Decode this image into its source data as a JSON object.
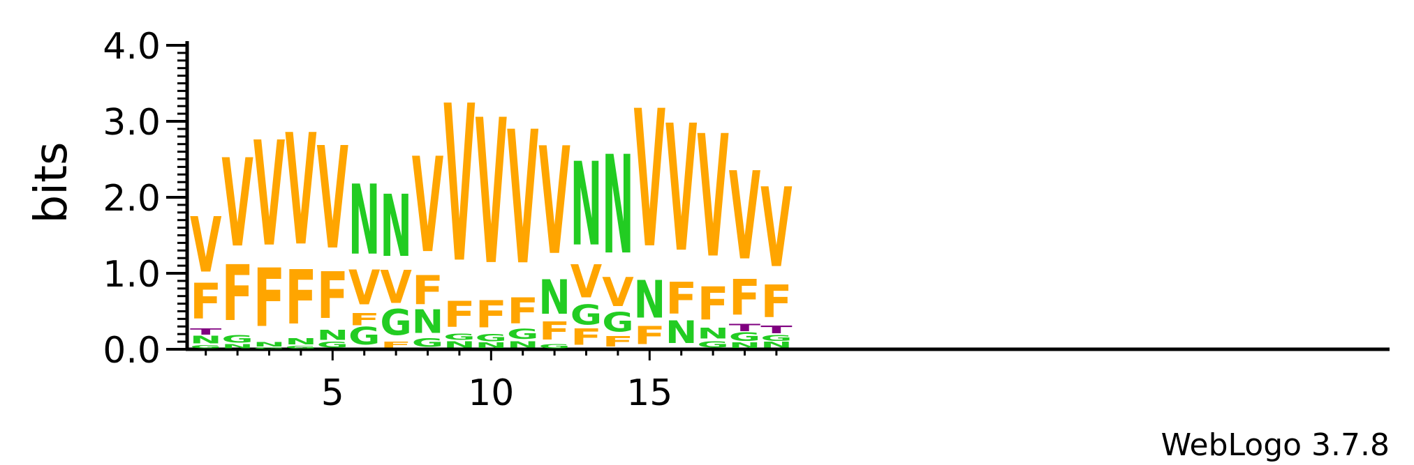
{
  "chart_data": {
    "type": "sequence-logo",
    "ylabel": "bits",
    "ylim": [
      0,
      4.0
    ],
    "ytick_labels": [
      "0.0",
      "1.0",
      "2.0",
      "3.0",
      "4.0"
    ],
    "xtick_labels": [
      "5",
      "10",
      "15"
    ],
    "credit": "WebLogo 3.7.8",
    "colors": {
      "V": "#ffa500",
      "F": "#ffa500",
      "N": "#22cc22",
      "G": "#22cc22",
      "T": "#800080"
    },
    "positions": [
      {
        "pos": 1,
        "letters": [
          [
            "G",
            0.05
          ],
          [
            "N",
            0.12
          ],
          [
            "T",
            0.1
          ],
          [
            "F",
            0.55
          ],
          [
            "V",
            0.85
          ]
        ]
      },
      {
        "pos": 2,
        "letters": [
          [
            "N",
            0.06
          ],
          [
            "G",
            0.12
          ],
          [
            "F",
            0.86
          ],
          [
            "V",
            1.36
          ]
        ]
      },
      {
        "pos": 3,
        "letters": [
          [
            "G",
            0.02
          ],
          [
            "N",
            0.07
          ],
          [
            "F",
            0.9
          ],
          [
            "V",
            1.62
          ]
        ]
      },
      {
        "pos": 4,
        "letters": [
          [
            "G",
            0.04
          ],
          [
            "N",
            0.1
          ],
          [
            "F",
            0.84
          ],
          [
            "V",
            1.72
          ]
        ]
      },
      {
        "pos": 5,
        "letters": [
          [
            "G",
            0.09
          ],
          [
            "N",
            0.15
          ],
          [
            "F",
            0.72
          ],
          [
            "V",
            1.58
          ]
        ]
      },
      {
        "pos": 6,
        "letters": [
          [
            "G",
            0.27
          ],
          [
            "F",
            0.19
          ],
          [
            "V",
            0.54
          ],
          [
            "N",
            1.08
          ]
        ]
      },
      {
        "pos": 7,
        "letters": [
          [
            "F",
            0.09
          ],
          [
            "G",
            0.4
          ],
          [
            "V",
            0.51
          ],
          [
            "N",
            0.96
          ]
        ]
      },
      {
        "pos": 8,
        "letters": [
          [
            "G",
            0.13
          ],
          [
            "N",
            0.36
          ],
          [
            "F",
            0.45
          ],
          [
            "V",
            1.47
          ]
        ]
      },
      {
        "pos": 9,
        "letters": [
          [
            "N",
            0.1
          ],
          [
            "G",
            0.1
          ],
          [
            "F",
            0.4
          ],
          [
            "V",
            2.42
          ]
        ]
      },
      {
        "pos": 10,
        "letters": [
          [
            "N",
            0.08
          ],
          [
            "G",
            0.11
          ],
          [
            "F",
            0.42
          ],
          [
            "V",
            2.24
          ]
        ]
      },
      {
        "pos": 11,
        "letters": [
          [
            "N",
            0.1
          ],
          [
            "G",
            0.15
          ],
          [
            "F",
            0.4
          ],
          [
            "V",
            2.06
          ]
        ]
      },
      {
        "pos": 12,
        "letters": [
          [
            "G",
            0.06
          ],
          [
            "F",
            0.28
          ],
          [
            "N",
            0.53
          ],
          [
            "V",
            1.66
          ]
        ]
      },
      {
        "pos": 13,
        "letters": [
          [
            "F",
            0.25
          ],
          [
            "G",
            0.31
          ],
          [
            "V",
            0.51
          ],
          [
            "N",
            1.29
          ]
        ]
      },
      {
        "pos": 14,
        "letters": [
          [
            "F",
            0.16
          ],
          [
            "G",
            0.3
          ],
          [
            "V",
            0.45
          ],
          [
            "N",
            1.52
          ]
        ]
      },
      {
        "pos": 15,
        "letters": [
          [
            "F",
            0.28
          ],
          [
            "N",
            0.58
          ],
          [
            "V",
            2.12
          ]
        ]
      },
      {
        "pos": 16,
        "letters": [
          [
            "N",
            0.35
          ],
          [
            "F",
            0.49
          ],
          [
            "V",
            1.96
          ]
        ]
      },
      {
        "pos": 17,
        "letters": [
          [
            "G",
            0.1
          ],
          [
            "N",
            0.17
          ],
          [
            "F",
            0.51
          ],
          [
            "V",
            1.89
          ]
        ]
      },
      {
        "pos": 18,
        "letters": [
          [
            "N",
            0.08
          ],
          [
            "G",
            0.13
          ],
          [
            "T",
            0.11
          ],
          [
            "F",
            0.55
          ],
          [
            "V",
            1.36
          ]
        ]
      },
      {
        "pos": 19,
        "letters": [
          [
            "N",
            0.09
          ],
          [
            "G",
            0.09
          ],
          [
            "T",
            0.12
          ],
          [
            "F",
            0.5
          ],
          [
            "V",
            1.23
          ]
        ]
      }
    ]
  }
}
